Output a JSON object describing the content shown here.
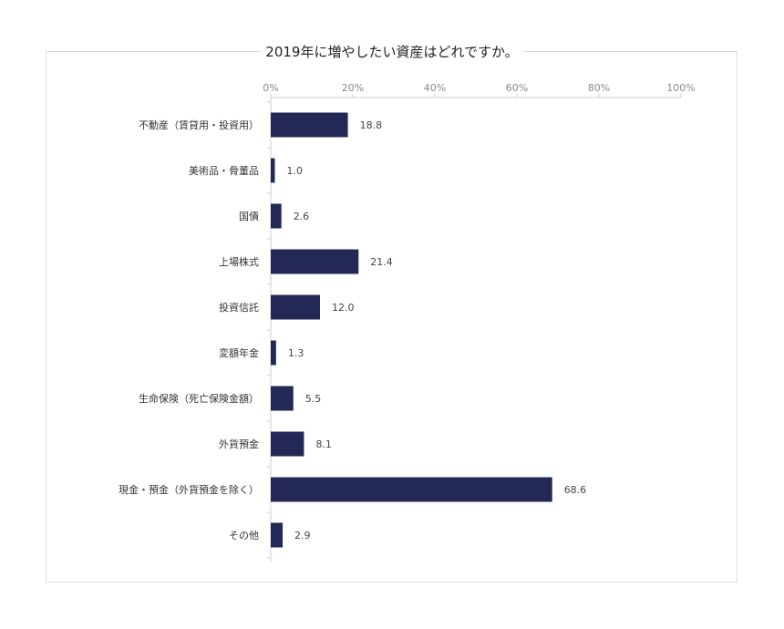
{
  "chart_data": {
    "type": "bar",
    "orientation": "horizontal",
    "title": "2019年に増やしたい資産はどれですか。",
    "xlabel": "",
    "ylabel": "",
    "xlim": [
      0,
      100
    ],
    "x_tick_labels": [
      "0%",
      "20%",
      "40%",
      "60%",
      "80%",
      "100%"
    ],
    "x_axis_position": "top",
    "grid": false,
    "legend": "none",
    "bar_color": "#232856",
    "categories": [
      "不動産（賃貸用・投資用）",
      "美術品・骨董品",
      "国債",
      "上場株式",
      "投資信託",
      "変額年金",
      "生命保険（死亡保険金額）",
      "外貨預金",
      "現金・預金（外貨預金を除く）",
      "その他"
    ],
    "values": [
      18.8,
      1.0,
      2.6,
      21.4,
      12.0,
      1.3,
      5.5,
      8.1,
      68.6,
      2.9
    ],
    "value_labels": [
      "18.8",
      "1.0",
      "2.6",
      "21.4",
      "12.0",
      "1.3",
      "5.5",
      "8.1",
      "68.6",
      "2.9"
    ]
  }
}
